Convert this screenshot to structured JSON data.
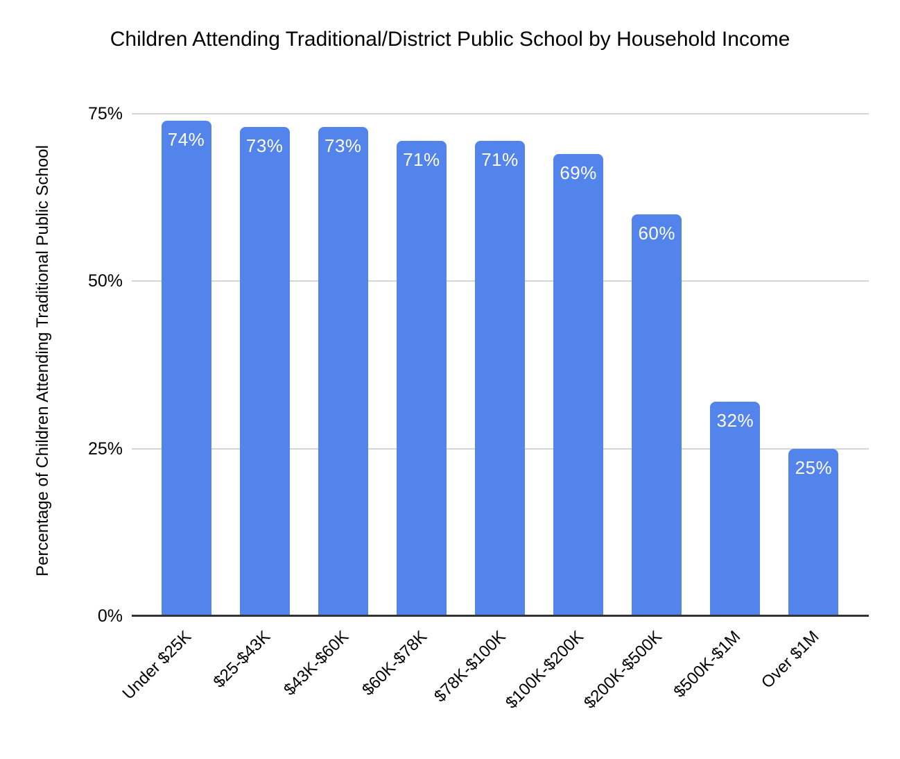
{
  "chart_data": {
    "type": "bar",
    "title": "Children Attending Traditional/District Public School by Household Income",
    "ylabel": "Percentage of Children Attending Traditional Public School",
    "xlabel": "",
    "categories": [
      "Under $25K",
      "$25-$43K",
      "$43K-$60K",
      "$60K-$78K",
      "$78K-$100K",
      "$100K-$200K",
      "$200K-$500K",
      "$500K-$1M",
      "Over $1M"
    ],
    "values": [
      74,
      73,
      73,
      71,
      71,
      69,
      60,
      32,
      25
    ],
    "value_labels": [
      "74%",
      "73%",
      "73%",
      "71%",
      "71%",
      "69%",
      "60%",
      "32%",
      "25%"
    ],
    "y_ticks": [
      "0%",
      "25%",
      "50%",
      "75%"
    ],
    "y_tick_values": [
      0,
      25,
      50,
      75
    ],
    "ylim": [
      0,
      77.5
    ],
    "grid": "horizontal-only",
    "legend": "none",
    "bar_color": "#5384EC",
    "value_label_color": "#FFFFFF",
    "gridline_color": "#D5D5D5",
    "axis_line_color": "#333333",
    "text_color": "#000000"
  }
}
